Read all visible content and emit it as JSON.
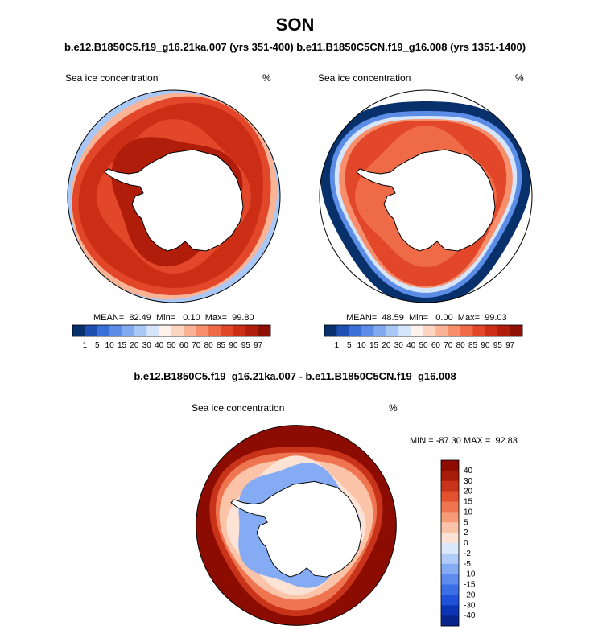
{
  "title": "SON",
  "subtitle": "b.e12.B1850C5.f19_g16.21ka.007 (yrs 351-400) b.e11.B1850C5CN.f19_g16.008 (yrs 1351-1400)",
  "colors": {
    "ice_scale": [
      "#08306b",
      "#1d4fb3",
      "#3a6fd8",
      "#5b8ce6",
      "#82aaf0",
      "#a9c8f6",
      "#d6e5fa",
      "#fff2ea",
      "#fdd6c2",
      "#fbb395",
      "#f78f6c",
      "#ef6a47",
      "#e2472a",
      "#cc2d15",
      "#b01d0a",
      "#8e0f03"
    ],
    "diff_scale": [
      "#08238c",
      "#0b35b5",
      "#1f52d8",
      "#3a6fe6",
      "#5d8cee",
      "#85abf4",
      "#b0cbf8",
      "#dbe8fc",
      "#fde3d6",
      "#fbc3a8",
      "#f79c78",
      "#ef7550",
      "#e2522f",
      "#c8331a",
      "#a81c0a",
      "#8c0c02"
    ],
    "land": "#ffffff",
    "outline": "#000000"
  },
  "panels": [
    {
      "label": "Sea ice concentration",
      "units": "%",
      "stats": "MEAN=  82.49  Min=   0.10  Max=  99.80",
      "chart_data": {
        "type": "heatmap",
        "projection": "south-polar-stereographic",
        "field": "sea ice concentration",
        "mean": 82.49,
        "min": 0.1,
        "max": 99.8,
        "colorbar_ticks": [
          "1",
          "5",
          "10",
          "15",
          "20",
          "30",
          "40",
          "50",
          "60",
          "70",
          "80",
          "85",
          "90",
          "95",
          "97"
        ],
        "contour_levels": [
          1,
          5,
          10,
          15,
          20,
          30,
          40,
          50,
          60,
          70,
          80,
          85,
          90,
          95,
          97
        ]
      }
    },
    {
      "label": "Sea ice concentration",
      "units": "%",
      "stats": "MEAN=  48.59  Min=   0.00  Max=  99.03",
      "chart_data": {
        "type": "heatmap",
        "projection": "south-polar-stereographic",
        "field": "sea ice concentration",
        "mean": 48.59,
        "min": 0.0,
        "max": 99.03,
        "colorbar_ticks": [
          "1",
          "5",
          "10",
          "15",
          "20",
          "30",
          "40",
          "50",
          "60",
          "70",
          "80",
          "85",
          "90",
          "95",
          "97"
        ],
        "contour_levels": [
          1,
          5,
          10,
          15,
          20,
          30,
          40,
          50,
          60,
          70,
          80,
          85,
          90,
          95,
          97
        ]
      }
    }
  ],
  "difference": {
    "title": "b.e12.B1850C5.f19_g16.21ka.007 - b.e11.B1850C5CN.f19_g16.008",
    "label": "Sea ice concentration",
    "units": "%",
    "stats": "MIN = -87.30 MAX =  92.83",
    "chart_data": {
      "type": "heatmap",
      "projection": "south-polar-stereographic",
      "field": "sea ice concentration difference",
      "min": -87.3,
      "max": 92.83,
      "colorbar_ticks": [
        "40",
        "30",
        "20",
        "15",
        "10",
        "5",
        "2",
        "0",
        "-2",
        "-5",
        "-10",
        "-15",
        "-20",
        "-30",
        "-40"
      ],
      "contour_levels": [
        -40,
        -30,
        -20,
        -15,
        -10,
        -5,
        -2,
        0,
        2,
        5,
        10,
        15,
        20,
        30,
        40
      ]
    }
  }
}
